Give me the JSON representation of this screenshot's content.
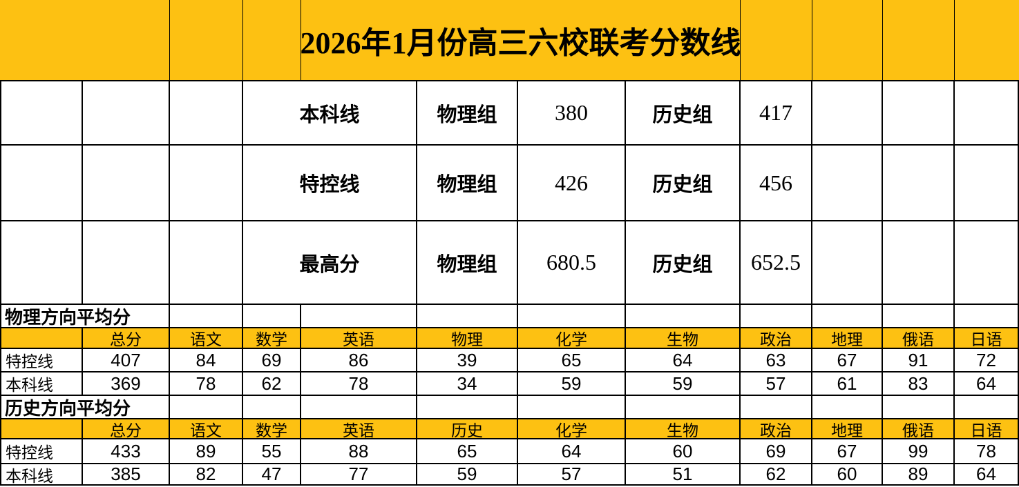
{
  "colors": {
    "accent": "#FDC112",
    "grid": "#000000",
    "text": "#000000",
    "background": "#FFFFFF"
  },
  "banner": {
    "title": "2026年1月份高三六校联考分数线"
  },
  "score_lines": {
    "rows": [
      {
        "label": "本科线",
        "group1": "物理组",
        "score1": "380",
        "group2": "历史组",
        "score2": "417"
      },
      {
        "label": "特控线",
        "group1": "物理组",
        "score1": "426",
        "group2": "历史组",
        "score2": "456"
      },
      {
        "label": "最高分",
        "group1": "物理组",
        "score1": "680.5",
        "group2": "历史组",
        "score2": "652.5"
      }
    ]
  },
  "physics": {
    "section_label": "物理方向平均分",
    "headers": [
      "总分",
      "语文",
      "数学",
      "英语",
      "物理",
      "化学",
      "生物",
      "政治",
      "地理",
      "俄语",
      "日语"
    ],
    "rows": [
      {
        "label": "特控线",
        "values": [
          "407",
          "84",
          "69",
          "86",
          "39",
          "65",
          "64",
          "63",
          "67",
          "91",
          "72"
        ]
      },
      {
        "label": "本科线",
        "values": [
          "369",
          "78",
          "62",
          "78",
          "34",
          "59",
          "59",
          "57",
          "61",
          "83",
          "64"
        ]
      }
    ]
  },
  "history": {
    "section_label": "历史方向平均分",
    "headers": [
      "总分",
      "语文",
      "数学",
      "英语",
      "历史",
      "化学",
      "生物",
      "政治",
      "地理",
      "俄语",
      "日语"
    ],
    "rows": [
      {
        "label": "特控线",
        "values": [
          "433",
          "89",
          "55",
          "88",
          "65",
          "64",
          "60",
          "69",
          "67",
          "99",
          "78"
        ]
      },
      {
        "label": "本科线",
        "values": [
          "385",
          "82",
          "47",
          "77",
          "59",
          "57",
          "51",
          "62",
          "60",
          "89",
          "64"
        ]
      }
    ]
  }
}
